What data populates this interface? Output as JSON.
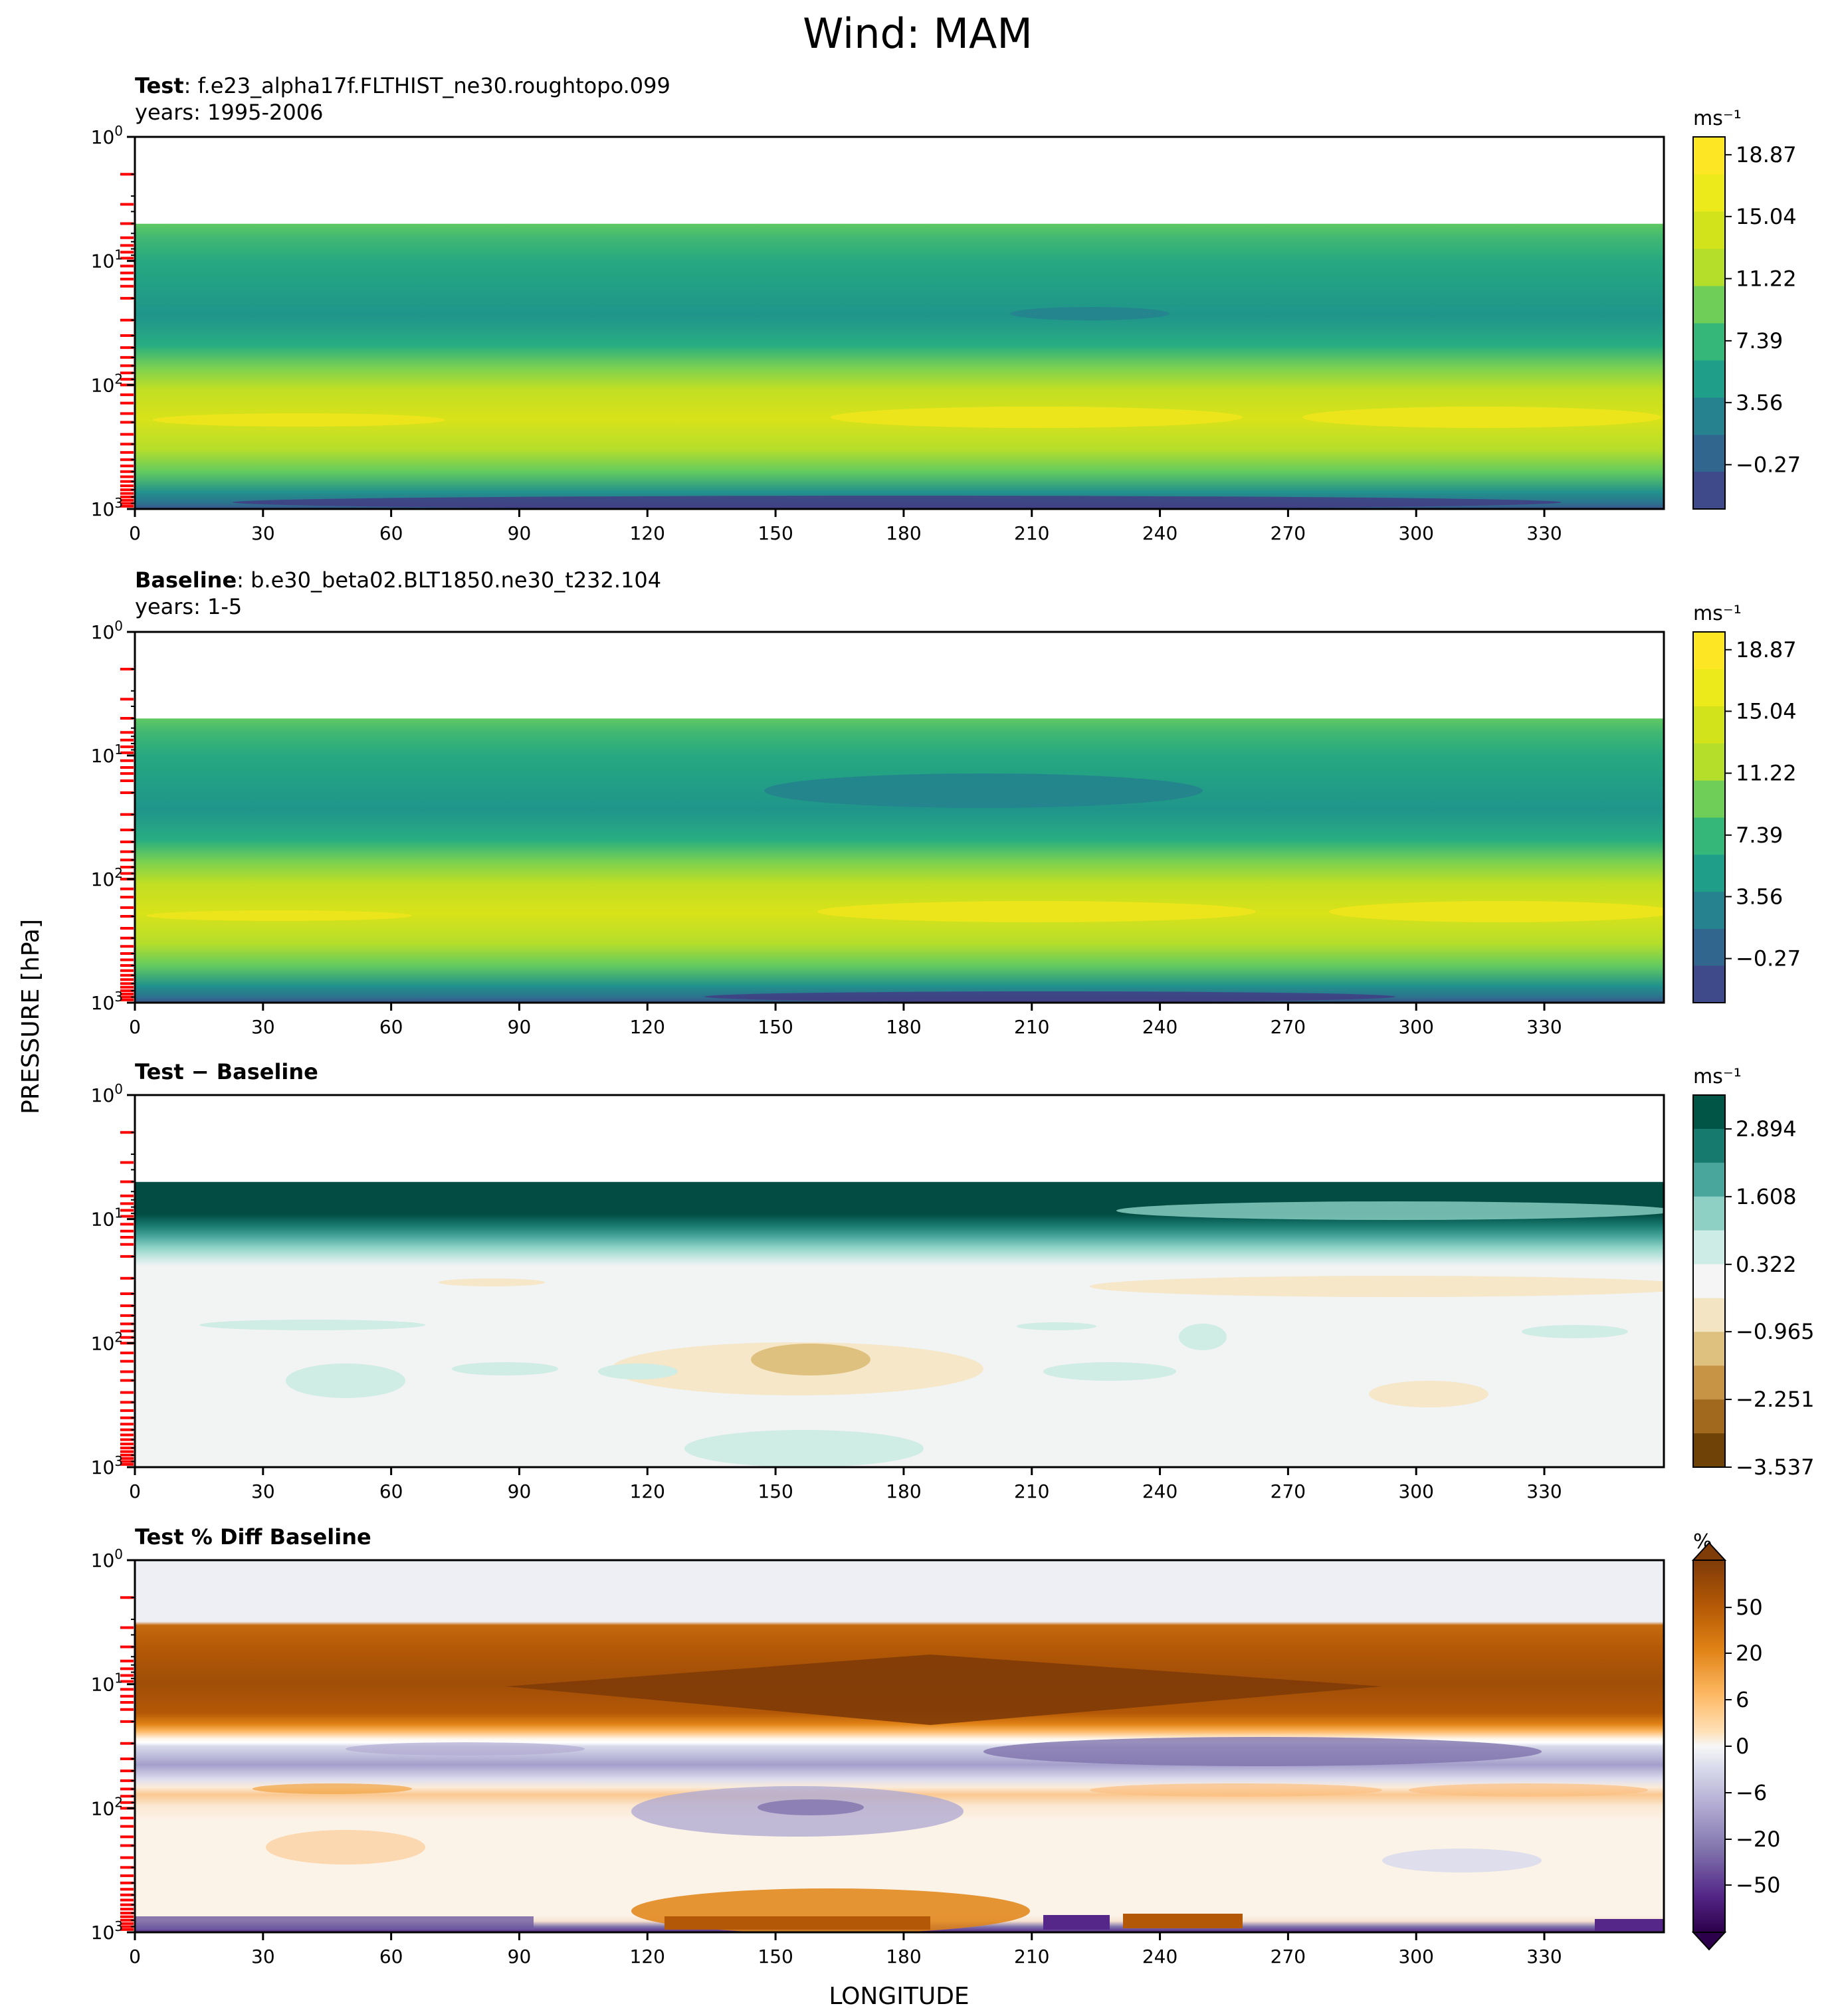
{
  "figure": {
    "title": "Wind: MAM",
    "ylabel": "PRESSURE [hPa]",
    "xlabel": "LONGITUDE"
  },
  "chart_data": [
    {
      "type": "heatmap",
      "title_bold": "Test",
      "title_rest": ": f.e23_alpha17f.FLTHIST_ne30.roughtopo.099",
      "subtitle": "years: 1995-2006",
      "xlabel": "",
      "ylabel": "PRESSURE [hPa]",
      "xticks": [
        0,
        30,
        60,
        90,
        120,
        150,
        180,
        210,
        240,
        270,
        300,
        330
      ],
      "xlim": [
        0,
        358
      ],
      "yscale": "log",
      "ylim": [
        1000,
        1
      ],
      "yticks": [
        "10^0",
        "10^1",
        "10^2",
        "10^3"
      ],
      "colorbar": {
        "unit": "ms⁻¹",
        "cmap": "viridis",
        "ticks": [
          "18.87",
          "15.04",
          "11.22",
          "7.39",
          "3.56",
          "−0.27"
        ],
        "range": [
          -2.18,
          20.78
        ]
      },
      "grid": false
    },
    {
      "type": "heatmap",
      "title_bold": "Baseline",
      "title_rest": ": b.e30_beta02.BLT1850.ne30_t232.104",
      "subtitle": "years: 1-5",
      "xlabel": "",
      "ylabel": "PRESSURE [hPa]",
      "xticks": [
        0,
        30,
        60,
        90,
        120,
        150,
        180,
        210,
        240,
        270,
        300,
        330
      ],
      "xlim": [
        0,
        358
      ],
      "yscale": "log",
      "ylim": [
        1000,
        1
      ],
      "yticks": [
        "10^0",
        "10^1",
        "10^2",
        "10^3"
      ],
      "colorbar": {
        "unit": "ms⁻¹",
        "cmap": "viridis",
        "ticks": [
          "18.87",
          "15.04",
          "11.22",
          "7.39",
          "3.56",
          "−0.27"
        ],
        "range": [
          -2.18,
          20.78
        ]
      },
      "grid": false
    },
    {
      "type": "heatmap",
      "title_bold": "Test − Baseline",
      "title_rest": "",
      "subtitle": "",
      "xlabel": "",
      "ylabel": "PRESSURE [hPa]",
      "xticks": [
        0,
        30,
        60,
        90,
        120,
        150,
        180,
        210,
        240,
        270,
        300,
        330
      ],
      "xlim": [
        0,
        358
      ],
      "yscale": "log",
      "ylim": [
        1000,
        1
      ],
      "yticks": [
        "10^0",
        "10^1",
        "10^2",
        "10^3"
      ],
      "colorbar": {
        "unit": "ms⁻¹",
        "cmap": "BrBG",
        "ticks": [
          "2.894",
          "1.608",
          "0.322",
          "−0.965",
          "−2.251",
          "−3.537"
        ],
        "range": [
          -3.537,
          3.537
        ]
      },
      "grid": false
    },
    {
      "type": "heatmap",
      "title_bold": "Test % Diff Baseline",
      "title_rest": "",
      "subtitle": "",
      "xlabel": "LONGITUDE",
      "ylabel": "PRESSURE [hPa]",
      "xticks": [
        0,
        30,
        60,
        90,
        120,
        150,
        180,
        210,
        240,
        270,
        300,
        330
      ],
      "xlim": [
        0,
        358
      ],
      "yscale": "log",
      "ylim": [
        1000,
        1
      ],
      "yticks": [
        "10^0",
        "10^1",
        "10^2",
        "10^3"
      ],
      "colorbar": {
        "unit": "%",
        "cmap": "PuOr_r",
        "ticks": [
          "50",
          "20",
          "6",
          "0",
          "−6",
          "−20",
          "−50"
        ],
        "extend": "both"
      },
      "grid": false
    }
  ],
  "colors": {
    "missing_data_marks": "#ff0000",
    "pct_upper_background": "#eeeff4"
  }
}
